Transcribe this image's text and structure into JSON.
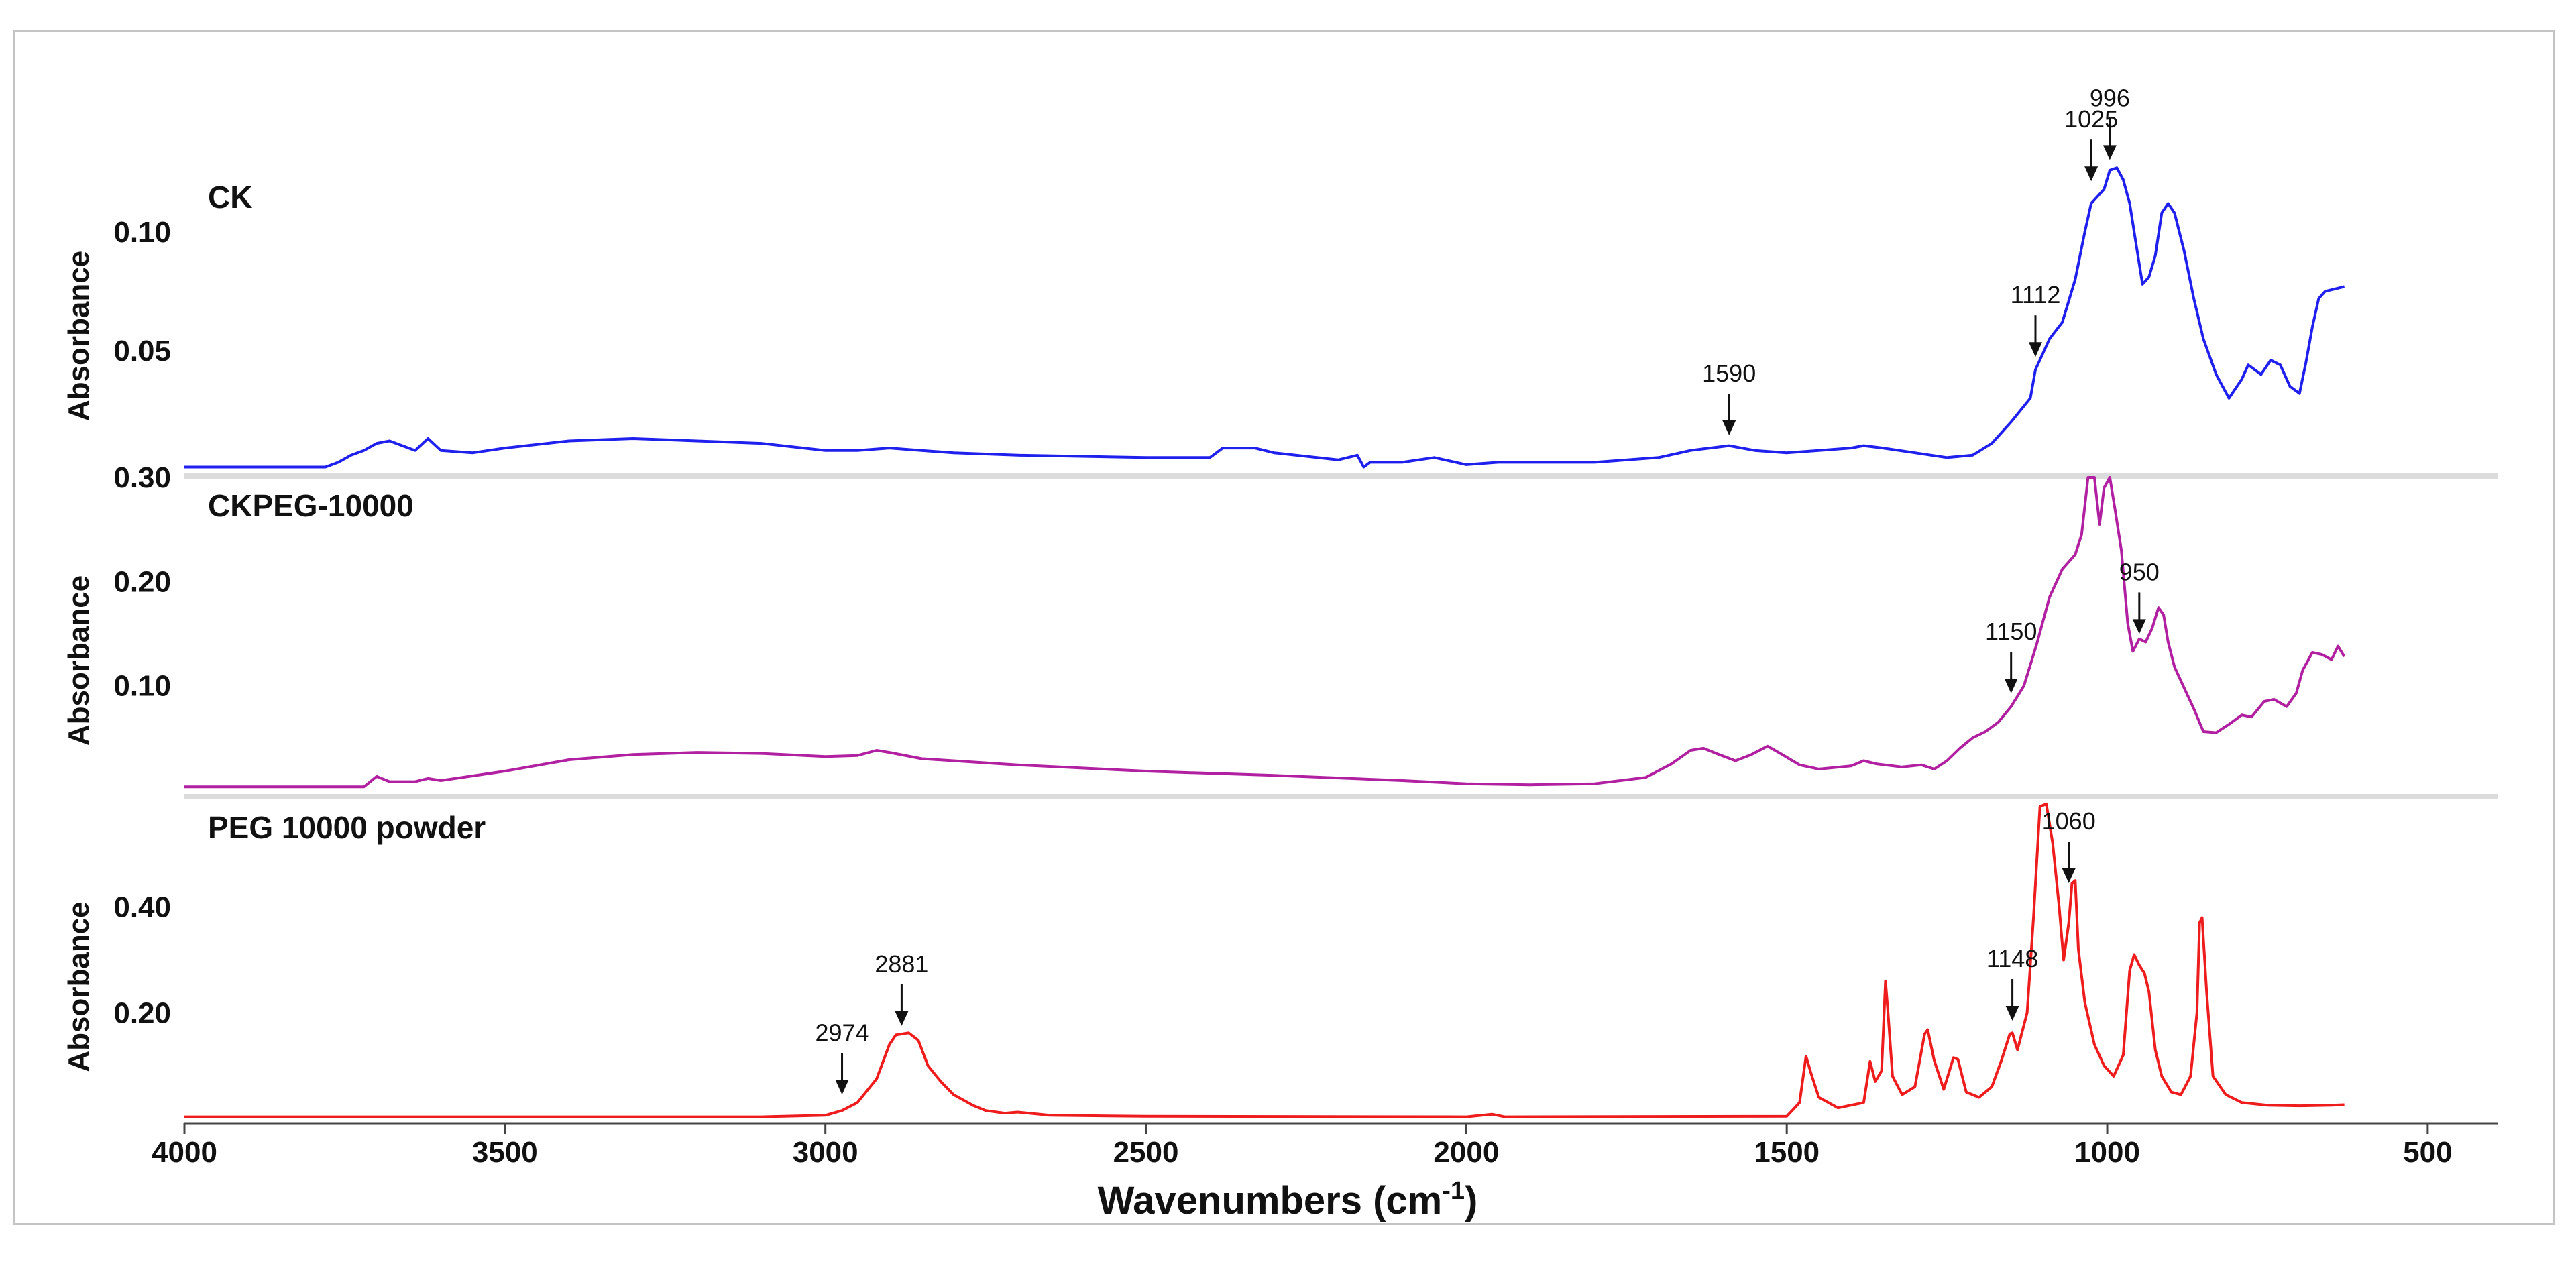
{
  "chart_data": {
    "type": "line",
    "xlabel": "Wavenumbers (cm",
    "xlabel_sup": "-1",
    "xlabel_close": ")",
    "xlim": [
      4000,
      390
    ],
    "x_ticks": [
      4000,
      3500,
      3000,
      2500,
      2000,
      1500,
      1000,
      500
    ],
    "panels": [
      {
        "title": "CK",
        "ylabel": "Absorbance",
        "color": "#2020ee",
        "ylim": [
          0.0,
          0.135
        ],
        "y_ticks": [
          "0.10",
          "0.05"
        ],
        "y_tick_values": [
          0.1,
          0.05
        ],
        "annotations": [
          {
            "label": "996",
            "x": 996,
            "y": 0.127
          },
          {
            "label": "1025",
            "x": 1025,
            "y": 0.118
          },
          {
            "label": "1112",
            "x": 1112,
            "y": 0.044
          },
          {
            "label": "1590",
            "x": 1590,
            "y": 0.011
          }
        ],
        "points": [
          [
            4000,
            0.001
          ],
          [
            3780,
            0.001
          ],
          [
            3760,
            0.003
          ],
          [
            3740,
            0.006
          ],
          [
            3720,
            0.008
          ],
          [
            3700,
            0.011
          ],
          [
            3680,
            0.012
          ],
          [
            3660,
            0.01
          ],
          [
            3640,
            0.008
          ],
          [
            3620,
            0.013
          ],
          [
            3600,
            0.008
          ],
          [
            3550,
            0.007
          ],
          [
            3500,
            0.009
          ],
          [
            3400,
            0.012
          ],
          [
            3300,
            0.013
          ],
          [
            3200,
            0.012
          ],
          [
            3100,
            0.011
          ],
          [
            3000,
            0.008
          ],
          [
            2950,
            0.008
          ],
          [
            2900,
            0.009
          ],
          [
            2850,
            0.008
          ],
          [
            2800,
            0.007
          ],
          [
            2700,
            0.006
          ],
          [
            2500,
            0.005
          ],
          [
            2400,
            0.005
          ],
          [
            2380,
            0.009
          ],
          [
            2330,
            0.009
          ],
          [
            2300,
            0.007
          ],
          [
            2200,
            0.004
          ],
          [
            2170,
            0.006
          ],
          [
            2160,
            0.001
          ],
          [
            2150,
            0.003
          ],
          [
            2100,
            0.003
          ],
          [
            2050,
            0.005
          ],
          [
            2000,
            0.002
          ],
          [
            1950,
            0.003
          ],
          [
            1900,
            0.003
          ],
          [
            1800,
            0.003
          ],
          [
            1700,
            0.005
          ],
          [
            1650,
            0.008
          ],
          [
            1590,
            0.01
          ],
          [
            1550,
            0.008
          ],
          [
            1500,
            0.007
          ],
          [
            1450,
            0.008
          ],
          [
            1400,
            0.009
          ],
          [
            1380,
            0.01
          ],
          [
            1350,
            0.009
          ],
          [
            1300,
            0.007
          ],
          [
            1250,
            0.005
          ],
          [
            1210,
            0.006
          ],
          [
            1180,
            0.011
          ],
          [
            1150,
            0.02
          ],
          [
            1120,
            0.03
          ],
          [
            1112,
            0.042
          ],
          [
            1090,
            0.055
          ],
          [
            1070,
            0.062
          ],
          [
            1050,
            0.08
          ],
          [
            1035,
            0.1
          ],
          [
            1025,
            0.112
          ],
          [
            1015,
            0.115
          ],
          [
            1005,
            0.118
          ],
          [
            996,
            0.126
          ],
          [
            985,
            0.127
          ],
          [
            975,
            0.122
          ],
          [
            965,
            0.112
          ],
          [
            955,
            0.095
          ],
          [
            945,
            0.078
          ],
          [
            935,
            0.081
          ],
          [
            925,
            0.09
          ],
          [
            915,
            0.108
          ],
          [
            905,
            0.112
          ],
          [
            895,
            0.108
          ],
          [
            880,
            0.092
          ],
          [
            865,
            0.072
          ],
          [
            850,
            0.055
          ],
          [
            830,
            0.04
          ],
          [
            810,
            0.03
          ],
          [
            790,
            0.038
          ],
          [
            780,
            0.044
          ],
          [
            760,
            0.04
          ],
          [
            745,
            0.046
          ],
          [
            730,
            0.044
          ],
          [
            715,
            0.035
          ],
          [
            700,
            0.032
          ],
          [
            690,
            0.045
          ],
          [
            680,
            0.06
          ],
          [
            670,
            0.072
          ],
          [
            660,
            0.075
          ],
          [
            645,
            0.076
          ],
          [
            630,
            0.077
          ]
        ]
      },
      {
        "title": "CKPEG-10000",
        "ylabel": "Absorbance",
        "color": "#b020a0",
        "ylim": [
          0.0,
          0.3
        ],
        "y_ticks": [
          "0.30",
          "0.20",
          "0.10"
        ],
        "y_tick_values": [
          0.3,
          0.2,
          0.1
        ],
        "annotations": [
          {
            "label": "950",
            "x": 950,
            "y": 0.142
          },
          {
            "label": "1150",
            "x": 1150,
            "y": 0.085
          }
        ],
        "points": [
          [
            4000,
            0.003
          ],
          [
            3720,
            0.003
          ],
          [
            3700,
            0.013
          ],
          [
            3680,
            0.008
          ],
          [
            3640,
            0.008
          ],
          [
            3620,
            0.011
          ],
          [
            3600,
            0.009
          ],
          [
            3500,
            0.018
          ],
          [
            3400,
            0.029
          ],
          [
            3300,
            0.034
          ],
          [
            3200,
            0.036
          ],
          [
            3100,
            0.035
          ],
          [
            3000,
            0.032
          ],
          [
            2950,
            0.033
          ],
          [
            2920,
            0.038
          ],
          [
            2900,
            0.036
          ],
          [
            2850,
            0.03
          ],
          [
            2700,
            0.024
          ],
          [
            2500,
            0.018
          ],
          [
            2300,
            0.014
          ],
          [
            2100,
            0.009
          ],
          [
            2000,
            0.006
          ],
          [
            1900,
            0.005
          ],
          [
            1800,
            0.006
          ],
          [
            1720,
            0.012
          ],
          [
            1680,
            0.025
          ],
          [
            1650,
            0.038
          ],
          [
            1630,
            0.04
          ],
          [
            1610,
            0.035
          ],
          [
            1580,
            0.028
          ],
          [
            1555,
            0.034
          ],
          [
            1530,
            0.042
          ],
          [
            1510,
            0.035
          ],
          [
            1480,
            0.024
          ],
          [
            1450,
            0.02
          ],
          [
            1400,
            0.023
          ],
          [
            1380,
            0.028
          ],
          [
            1360,
            0.025
          ],
          [
            1320,
            0.022
          ],
          [
            1290,
            0.024
          ],
          [
            1270,
            0.02
          ],
          [
            1250,
            0.028
          ],
          [
            1230,
            0.04
          ],
          [
            1210,
            0.05
          ],
          [
            1190,
            0.056
          ],
          [
            1170,
            0.065
          ],
          [
            1150,
            0.08
          ],
          [
            1130,
            0.1
          ],
          [
            1110,
            0.14
          ],
          [
            1090,
            0.185
          ],
          [
            1070,
            0.212
          ],
          [
            1050,
            0.226
          ],
          [
            1040,
            0.245
          ],
          [
            1030,
            0.3
          ],
          [
            1020,
            0.3
          ],
          [
            1012,
            0.255
          ],
          [
            1005,
            0.29
          ],
          [
            996,
            0.3
          ],
          [
            988,
            0.27
          ],
          [
            978,
            0.23
          ],
          [
            968,
            0.16
          ],
          [
            960,
            0.133
          ],
          [
            950,
            0.145
          ],
          [
            940,
            0.142
          ],
          [
            930,
            0.155
          ],
          [
            920,
            0.175
          ],
          [
            912,
            0.168
          ],
          [
            905,
            0.142
          ],
          [
            895,
            0.118
          ],
          [
            880,
            0.098
          ],
          [
            865,
            0.078
          ],
          [
            850,
            0.056
          ],
          [
            830,
            0.055
          ],
          [
            810,
            0.063
          ],
          [
            790,
            0.072
          ],
          [
            775,
            0.07
          ],
          [
            755,
            0.085
          ],
          [
            740,
            0.087
          ],
          [
            720,
            0.08
          ],
          [
            705,
            0.093
          ],
          [
            695,
            0.115
          ],
          [
            680,
            0.132
          ],
          [
            665,
            0.13
          ],
          [
            650,
            0.125
          ],
          [
            640,
            0.138
          ],
          [
            630,
            0.128
          ]
        ]
      },
      {
        "title": "PEG 10000 powder",
        "ylabel": "Absorbance",
        "color": "#ee1c1c",
        "ylim": [
          0.0,
          0.6
        ],
        "y_ticks": [
          "0.40",
          "0.20"
        ],
        "y_tick_values": [
          0.4,
          0.2
        ],
        "annotations": [
          {
            "label": "1060",
            "x": 1060,
            "y": 0.43
          },
          {
            "label": "1148",
            "x": 1148,
            "y": 0.17
          },
          {
            "label": "2881",
            "x": 2881,
            "y": 0.16
          },
          {
            "label": "2974",
            "x": 2974,
            "y": 0.03
          }
        ],
        "points": [
          [
            4000,
            0.003
          ],
          [
            3100,
            0.003
          ],
          [
            3000,
            0.006
          ],
          [
            2974,
            0.015
          ],
          [
            2950,
            0.03
          ],
          [
            2920,
            0.075
          ],
          [
            2900,
            0.14
          ],
          [
            2890,
            0.158
          ],
          [
            2870,
            0.162
          ],
          [
            2855,
            0.148
          ],
          [
            2840,
            0.1
          ],
          [
            2820,
            0.07
          ],
          [
            2800,
            0.045
          ],
          [
            2770,
            0.025
          ],
          [
            2750,
            0.015
          ],
          [
            2720,
            0.01
          ],
          [
            2700,
            0.012
          ],
          [
            2650,
            0.006
          ],
          [
            2500,
            0.004
          ],
          [
            2000,
            0.003
          ],
          [
            1960,
            0.008
          ],
          [
            1940,
            0.003
          ],
          [
            1500,
            0.004
          ],
          [
            1480,
            0.03
          ],
          [
            1470,
            0.118
          ],
          [
            1462,
            0.085
          ],
          [
            1450,
            0.04
          ],
          [
            1420,
            0.02
          ],
          [
            1380,
            0.03
          ],
          [
            1370,
            0.108
          ],
          [
            1362,
            0.07
          ],
          [
            1352,
            0.09
          ],
          [
            1346,
            0.26
          ],
          [
            1342,
            0.2
          ],
          [
            1335,
            0.08
          ],
          [
            1320,
            0.045
          ],
          [
            1300,
            0.06
          ],
          [
            1285,
            0.16
          ],
          [
            1280,
            0.168
          ],
          [
            1270,
            0.11
          ],
          [
            1255,
            0.055
          ],
          [
            1240,
            0.115
          ],
          [
            1233,
            0.112
          ],
          [
            1220,
            0.05
          ],
          [
            1200,
            0.04
          ],
          [
            1180,
            0.06
          ],
          [
            1165,
            0.11
          ],
          [
            1152,
            0.16
          ],
          [
            1148,
            0.162
          ],
          [
            1140,
            0.13
          ],
          [
            1125,
            0.2
          ],
          [
            1115,
            0.38
          ],
          [
            1105,
            0.59
          ],
          [
            1095,
            0.595
          ],
          [
            1085,
            0.52
          ],
          [
            1075,
            0.4
          ],
          [
            1068,
            0.3
          ],
          [
            1060,
            0.37
          ],
          [
            1055,
            0.445
          ],
          [
            1050,
            0.45
          ],
          [
            1045,
            0.32
          ],
          [
            1035,
            0.22
          ],
          [
            1020,
            0.14
          ],
          [
            1005,
            0.1
          ],
          [
            990,
            0.08
          ],
          [
            975,
            0.12
          ],
          [
            965,
            0.28
          ],
          [
            958,
            0.31
          ],
          [
            950,
            0.29
          ],
          [
            942,
            0.275
          ],
          [
            935,
            0.24
          ],
          [
            925,
            0.13
          ],
          [
            915,
            0.08
          ],
          [
            900,
            0.05
          ],
          [
            885,
            0.045
          ],
          [
            870,
            0.08
          ],
          [
            860,
            0.2
          ],
          [
            856,
            0.37
          ],
          [
            852,
            0.38
          ],
          [
            845,
            0.24
          ],
          [
            835,
            0.08
          ],
          [
            815,
            0.045
          ],
          [
            790,
            0.03
          ],
          [
            750,
            0.025
          ],
          [
            700,
            0.024
          ],
          [
            650,
            0.025
          ],
          [
            630,
            0.026
          ]
        ]
      }
    ]
  }
}
